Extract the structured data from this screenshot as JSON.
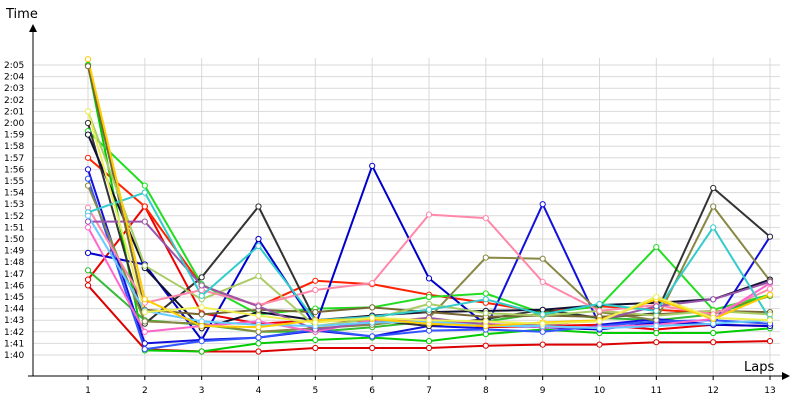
{
  "chart_data": {
    "type": "line",
    "xlabel": "Laps",
    "ylabel": "Time",
    "x": [
      1,
      2,
      3,
      4,
      5,
      6,
      7,
      8,
      9,
      10,
      11,
      12,
      13
    ],
    "x_tick_labels": [
      "1",
      "2",
      "3",
      "4",
      "5",
      "6",
      "7",
      "8",
      "9",
      "10",
      "11",
      "12",
      "13"
    ],
    "y_tick_values": [
      100,
      101,
      102,
      103,
      104,
      105,
      106,
      107,
      108,
      109,
      110,
      111,
      112,
      113,
      114,
      115,
      116,
      117,
      118,
      119,
      120,
      121,
      122,
      123,
      124,
      125
    ],
    "y_tick_labels": [
      "1:40",
      "1:41",
      "1:42",
      "1:43",
      "1:44",
      "1:45",
      "1:46",
      "1:47",
      "1:48",
      "1:49",
      "1:50",
      "1:51",
      "1:52",
      "1:53",
      "1:54",
      "1:55",
      "1:56",
      "1:57",
      "1:58",
      "1:59",
      "2:00",
      "2:01",
      "2:02",
      "2:03",
      "2:04",
      "2:05"
    ],
    "y_unit": "seconds",
    "xlim": [
      0,
      13
    ],
    "ylim": [
      98.5,
      128
    ],
    "grid": true,
    "legend": "none",
    "series": [
      {
        "color": "#ee0000",
        "values": [
          106.5,
          112.8,
          103.6,
          102.7,
          103.0,
          102.9,
          103.1,
          102.4,
          102.5,
          102.6,
          102.2,
          102.6,
          102.5
        ]
      },
      {
        "color": "#dd0000",
        "values": [
          106.0,
          100.5,
          100.3,
          100.3,
          100.6,
          100.6,
          100.6,
          100.8,
          100.9,
          100.9,
          101.1,
          101.1,
          101.2
        ]
      },
      {
        "color": "#ff2200",
        "values": [
          117.0,
          112.8,
          106.0,
          104.2,
          106.4,
          106.1,
          105.2,
          104.5,
          103.7,
          104.2,
          103.9,
          103.6,
          105.1
        ]
      },
      {
        "color": "#00cc00",
        "values": [
          125.0,
          100.4,
          100.3,
          101.0,
          101.3,
          101.5,
          101.2,
          101.8,
          102.2,
          101.9,
          101.9,
          101.9,
          102.3
        ]
      },
      {
        "color": "#22dd22",
        "values": [
          119.3,
          114.6,
          106.1,
          103.5,
          104.0,
          104.1,
          105.0,
          105.3,
          103.6,
          104.2,
          109.3,
          103.9,
          105.2
        ]
      },
      {
        "color": "#33bb33",
        "values": [
          107.3,
          103.0,
          102.6,
          102.0,
          102.0,
          102.4,
          102.9,
          102.9,
          103.6,
          103.2,
          103.0,
          103.5,
          105.1
        ]
      },
      {
        "color": "#1111dd",
        "values": [
          116.0,
          101.0,
          101.3,
          101.5,
          102.1,
          101.6,
          102.5,
          102.3,
          113.0,
          102.6,
          103.1,
          102.6,
          110.2
        ]
      },
      {
        "color": "#0000cc",
        "values": [
          108.8,
          107.8,
          101.3,
          110.0,
          102.5,
          116.3,
          106.6,
          102.6,
          102.4,
          102.2,
          102.8,
          102.6,
          102.5
        ]
      },
      {
        "color": "#3355ff",
        "values": [
          115.2,
          100.5,
          101.2,
          101.5,
          102.2,
          101.6,
          102.1,
          102.2,
          102.0,
          102.5,
          102.9,
          103.0,
          102.7
        ]
      },
      {
        "color": "#333333",
        "values": [
          120.0,
          102.7,
          106.7,
          112.8,
          103.0,
          103.0,
          102.5,
          103.1,
          103.9,
          103.2,
          103.6,
          114.4,
          110.2
        ]
      },
      {
        "color": "#111133",
        "values": [
          119.0,
          107.5,
          102.3,
          103.7,
          103.0,
          103.4,
          103.7,
          103.8,
          103.9,
          104.3,
          104.5,
          104.8,
          106.5
        ]
      },
      {
        "color": "#888844",
        "values": [
          114.6,
          102.9,
          102.7,
          102.0,
          102.3,
          102.6,
          103.2,
          108.4,
          108.3,
          103.7,
          103.0,
          112.8,
          106.4
        ]
      },
      {
        "color": "#776633",
        "values": [
          124.9,
          103.9,
          103.5,
          103.9,
          103.7,
          104.1,
          103.7,
          103.3,
          103.4,
          103.3,
          103.5,
          103.8,
          103.7
        ]
      },
      {
        "color": "#aacc66",
        "values": [
          121.0,
          107.7,
          104.8,
          106.8,
          102.5,
          103.1,
          104.4,
          103.6,
          103.4,
          103.8,
          103.4,
          103.8,
          103.5
        ]
      },
      {
        "color": "#ff88aa",
        "values": [
          112.7,
          104.5,
          105.6,
          104.3,
          105.6,
          106.2,
          112.1,
          111.8,
          106.3,
          103.8,
          104.3,
          103.5,
          105.7
        ]
      },
      {
        "color": "#ff66cc",
        "values": [
          111.0,
          102.0,
          102.5,
          102.9,
          102.0,
          103.0,
          102.8,
          102.7,
          102.4,
          102.4,
          102.6,
          103.1,
          106.2
        ]
      },
      {
        "color": "#9955aa",
        "values": [
          111.5,
          111.5,
          106.0,
          104.2,
          102.2,
          102.8,
          103.2,
          102.6,
          102.6,
          103.0,
          104.2,
          104.8,
          106.3
        ]
      },
      {
        "color": "#33cccc",
        "values": [
          112.3,
          114.0,
          105.1,
          109.4,
          103.0,
          103.3,
          103.9,
          104.8,
          103.5,
          104.4,
          103.8,
          111.0,
          103.1
        ]
      },
      {
        "color": "#66ccff",
        "values": [
          112.0,
          103.8,
          102.9,
          102.6,
          102.5,
          102.8,
          102.9,
          102.5,
          102.5,
          102.3,
          102.5,
          102.7,
          103.0
        ]
      },
      {
        "color": "#ffcc00",
        "values": [
          125.5,
          104.8,
          102.5,
          102.4,
          103.0,
          103.1,
          102.7,
          102.5,
          102.8,
          103.0,
          104.8,
          103.1,
          105.2
        ]
      },
      {
        "color": "#eeee55",
        "values": [
          121.0,
          103.7,
          104.1,
          103.4,
          102.8,
          103.2,
          103.0,
          102.9,
          102.7,
          102.9,
          105.0,
          103.2,
          103.0
        ]
      }
    ]
  }
}
